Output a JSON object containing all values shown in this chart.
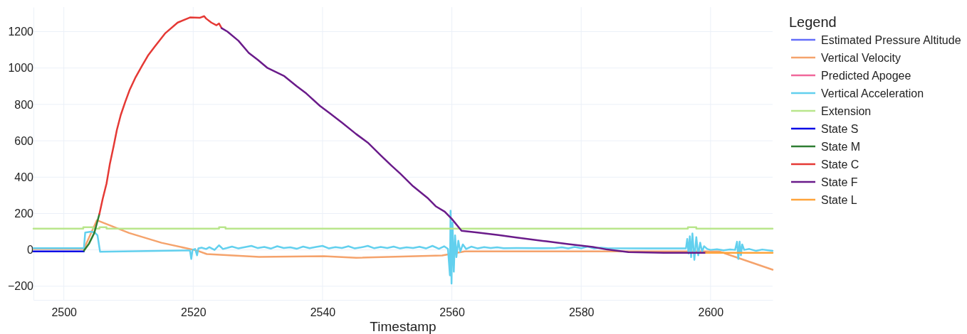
{
  "chart_data": {
    "type": "line",
    "xlabel": "Timestamp",
    "legend_title": "Legend",
    "legend": "top right",
    "grid": true,
    "line_style": "solid",
    "marker": "none",
    "xlim": [
      2495.3,
      2609.6
    ],
    "xticks": [
      2500,
      2520,
      2540,
      2560,
      2580,
      2600
    ],
    "ylim": [
      -275,
      1335
    ],
    "yticks": [
      -200,
      0,
      200,
      400,
      600,
      800,
      1000,
      1200
    ],
    "series": [
      {
        "name": "Estimated Pressure Altitude",
        "color": "#636efa"
      },
      {
        "name": "Vertical Velocity",
        "color": "#f5a36c",
        "x": [
          2495.3,
          2503.1,
          2505.1,
          2510.1,
          2515.1,
          2520.6,
          2522.1,
          2530.2,
          2540.2,
          2545.2,
          2558.5,
          2562,
          2580,
          2601.3,
          2609.6
        ],
        "values": [
          5,
          5,
          163,
          93,
          39,
          -4,
          -23,
          -39,
          -35,
          -43,
          -31,
          -8,
          -8,
          -8,
          -109
        ]
      },
      {
        "name": "Predicted Apogee",
        "color": "#f0679a"
      },
      {
        "name": "Vertical Acceleration",
        "color": "#62d0ee",
        "x": [
          2495.3,
          2503.1,
          2503.3,
          2504.2,
          2504.8,
          2505.2,
          2505.6,
          2519.5,
          2519.7,
          2519.9,
          2520.3,
          2520.6,
          2520.8,
          2521.3,
          2522,
          2522.5,
          2523.3,
          2524,
          2524.6,
          2525.2,
          2526,
          2527,
          2528,
          2529,
          2530,
          2531,
          2532,
          2533,
          2534,
          2535,
          2536,
          2537,
          2538,
          2539,
          2540,
          2541,
          2542,
          2543,
          2544,
          2545,
          2546,
          2547,
          2548,
          2549,
          2550,
          2551,
          2552,
          2553,
          2554,
          2555,
          2556,
          2557,
          2558,
          2558.8,
          2559.4,
          2559.7,
          2559.8,
          2559.95,
          2560.1,
          2560.3,
          2560.5,
          2560.7,
          2561,
          2561.3,
          2561.7,
          2562.2,
          2563,
          2564,
          2565,
          2566,
          2567,
          2568,
          2570,
          2574,
          2576,
          2577,
          2578,
          2579,
          2580,
          2581,
          2582,
          2583,
          2584,
          2590,
          2596.2,
          2596.4,
          2596.6,
          2596.8,
          2597,
          2597.2,
          2597.5,
          2597.8,
          2598.1,
          2598.4,
          2598.7,
          2599,
          2599.5,
          2600,
          2601,
          2602,
          2603,
          2603.8,
          2604.1,
          2604.3,
          2604.5,
          2604.7,
          2604.9,
          2605.2,
          2606,
          2607,
          2608,
          2609.6
        ],
        "values": [
          9,
          9,
          95,
          100,
          95,
          80,
          -10,
          -3,
          -50,
          0,
          5,
          -30,
          8,
          12,
          5,
          15,
          0,
          25,
          5,
          10,
          18,
          8,
          15,
          22,
          10,
          16,
          7,
          20,
          10,
          14,
          6,
          18,
          9,
          16,
          22,
          8,
          15,
          10,
          20,
          8,
          14,
          22,
          9,
          16,
          10,
          18,
          8,
          14,
          10,
          17,
          8,
          22,
          6,
          20,
          5,
          -140,
          215,
          -185,
          150,
          -120,
          80,
          -40,
          50,
          -10,
          30,
          5,
          18,
          8,
          15,
          10,
          14,
          9,
          10,
          9,
          10,
          14,
          8,
          16,
          9,
          18,
          8,
          12,
          9,
          8,
          8,
          60,
          -20,
          75,
          -40,
          90,
          -55,
          70,
          -30,
          40,
          -10,
          20,
          5,
          0,
          3,
          -2,
          2,
          0,
          45,
          -50,
          45,
          -30,
          30,
          0,
          5,
          -5,
          2,
          -5
        ]
      },
      {
        "name": "Extension",
        "color": "#b9e68c",
        "x": [
          2495.3,
          2503,
          2503,
          2504.5,
          2504.5,
          2505.5,
          2505.5,
          2506.6,
          2506.6,
          2524,
          2524,
          2525,
          2525,
          2596.5,
          2596.5,
          2597.8,
          2597.8,
          2609.6
        ],
        "values": [
          117,
          117,
          125,
          125,
          117,
          117,
          125,
          125,
          117,
          117,
          125,
          125,
          117,
          117,
          125,
          125,
          117,
          117
        ]
      },
      {
        "name": "State S",
        "color": "#0a0ae6",
        "x": [
          2495.3,
          2503.1
        ],
        "values": [
          -8,
          -8
        ]
      },
      {
        "name": "State M",
        "color": "#2e7d32",
        "x": [
          2503.1,
          2503.9,
          2504.7,
          2505.5
        ],
        "values": [
          -4,
          35,
          93,
          198
        ]
      },
      {
        "name": "State C",
        "color": "#e53935",
        "x": [
          2505.5,
          2506,
          2506.6,
          2507.1,
          2507.7,
          2508.2,
          2508.8,
          2509.5,
          2510.2,
          2511.1,
          2512.1,
          2513,
          2514,
          2515.7,
          2517.6,
          2519.5,
          2521,
          2521.7,
          2522,
          2522.8,
          2523.6,
          2524,
          2524.4
        ],
        "values": [
          198,
          280,
          365,
          470,
          571,
          660,
          742,
          815,
          882,
          950,
          1013,
          1068,
          1115,
          1192,
          1250,
          1278,
          1276,
          1285,
          1272,
          1250,
          1235,
          1245,
          1219
        ]
      },
      {
        "name": "State F",
        "color": "#6a1b8a",
        "x": [
          2524.4,
          2525.3,
          2527,
          2528.6,
          2530,
          2531.5,
          2534.1,
          2536,
          2537.5,
          2539.6,
          2541,
          2543,
          2545.2,
          2547,
          2549,
          2550.7,
          2552,
          2554,
          2556.2,
          2557.5,
          2558.9,
          2560,
          2561.5,
          2564,
          2567.2,
          2570,
          2574.6,
          2578,
          2581.8,
          2584,
          2587.3,
          2592.8,
          2599.3
        ],
        "values": [
          1219,
          1200,
          1150,
          1083,
          1045,
          1000,
          955,
          900,
          860,
          792,
          755,
          700,
          637,
          590,
          520,
          462,
          420,
          350,
          287,
          240,
          210,
          170,
          105,
          95,
          82,
          68,
          47,
          32,
          16,
          2,
          -12,
          -16,
          -16
        ]
      },
      {
        "name": "State L",
        "color": "#ffa33a",
        "x": [
          2599.3,
          2609.6
        ],
        "values": [
          -16,
          -16
        ]
      }
    ]
  }
}
